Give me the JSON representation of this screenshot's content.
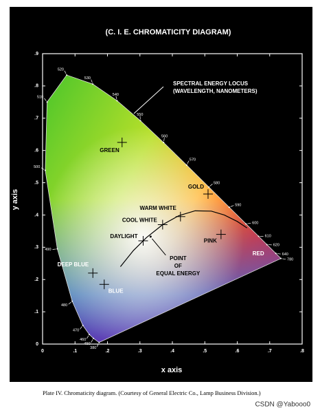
{
  "chart_data": {
    "type": "chromaticity",
    "title": "(C. I. E. CHROMATICITY DIAGRAM)",
    "x_label": "x axis",
    "y_label": "y axis",
    "xlim": [
      0,
      0.8
    ],
    "ylim": [
      0,
      0.9
    ],
    "xticks": [
      0,
      {
        "value": 0.1,
        "label": ".1"
      },
      {
        "value": 0.2,
        "label": ".2"
      },
      {
        "value": 0.3,
        "label": ".3"
      },
      {
        "value": 0.4,
        "label": ".4"
      },
      {
        "value": 0.5,
        "label": ".5"
      },
      {
        "value": 0.6,
        "label": ".6"
      },
      {
        "value": 0.7,
        "label": ".7"
      },
      {
        "value": 0.8,
        "label": ".8"
      }
    ],
    "yticks": [
      0,
      {
        "value": 0.1,
        "label": ".1"
      },
      {
        "value": 0.2,
        "label": ".2"
      },
      {
        "value": 0.3,
        "label": ".3"
      },
      {
        "value": 0.4,
        "label": ".4"
      },
      {
        "value": 0.5,
        "label": ".5"
      },
      {
        "value": 0.6,
        "label": ".6"
      },
      {
        "value": 0.7,
        "label": ".7"
      },
      {
        "value": 0.8,
        "label": ".8"
      },
      {
        "value": 0.9,
        "label": ".9"
      }
    ],
    "spectral_locus": {
      "wavelengths": [
        "380",
        "450",
        "460",
        "470",
        "480",
        "490",
        "500",
        "510",
        "520",
        "530",
        "540",
        "550",
        "560",
        "570",
        "580",
        "590",
        "600",
        "610",
        "620",
        "640",
        "780"
      ],
      "x": [
        0.1741,
        0.1566,
        0.144,
        0.1241,
        0.0913,
        0.0454,
        0.0082,
        0.0139,
        0.0743,
        0.1547,
        0.2296,
        0.3016,
        0.3731,
        0.4441,
        0.5125,
        0.5752,
        0.627,
        0.6658,
        0.6915,
        0.719,
        0.7347
      ],
      "y": [
        0.005,
        0.0177,
        0.0297,
        0.0578,
        0.1327,
        0.295,
        0.5384,
        0.7502,
        0.8338,
        0.8059,
        0.7543,
        0.6923,
        0.6245,
        0.5547,
        0.4866,
        0.4242,
        0.3725,
        0.334,
        0.3083,
        0.2809,
        0.2653
      ]
    },
    "locus_annotation": [
      "SPECTRAL ENERGY LOCUS",
      "(WAVELENGTH, NANOMETERS)"
    ],
    "points": [
      {
        "label": "GREEN",
        "x": 0.245,
        "y": 0.625,
        "marker": true
      },
      {
        "label": "GOLD",
        "x": 0.51,
        "y": 0.465,
        "marker": true
      },
      {
        "label": "WARM WHITE",
        "x": 0.425,
        "y": 0.395,
        "marker": true
      },
      {
        "label": "COOL WHITE",
        "x": 0.37,
        "y": 0.37,
        "marker": true
      },
      {
        "label": "DAYLIGHT",
        "x": 0.31,
        "y": 0.32,
        "marker": true
      },
      {
        "label": "PINK",
        "x": 0.55,
        "y": 0.34,
        "marker": true
      },
      {
        "label": "RED",
        "x": 0.665,
        "y": 0.28,
        "marker": false
      },
      {
        "label": "DEEP BLUE",
        "x": 0.155,
        "y": 0.22,
        "marker": true
      },
      {
        "label": "BLUE",
        "x": 0.19,
        "y": 0.185,
        "marker": true
      }
    ],
    "equal_energy": {
      "x": 0.333,
      "y": 0.333,
      "label": [
        "POINT",
        "OF",
        "EQUAL ENERGY"
      ]
    },
    "blackbody_locus": {
      "x": [
        0.24,
        0.28,
        0.32,
        0.37,
        0.42,
        0.47,
        0.52,
        0.56,
        0.6,
        0.63
      ],
      "y": [
        0.24,
        0.29,
        0.33,
        0.37,
        0.398,
        0.413,
        0.412,
        0.4,
        0.38,
        0.36
      ]
    },
    "caption": "Plate IV. Chromaticity diagram. (Courtesy of General Electric Co., Lamp Business Division.)",
    "watermark": "CSDN @Yabooo0"
  }
}
